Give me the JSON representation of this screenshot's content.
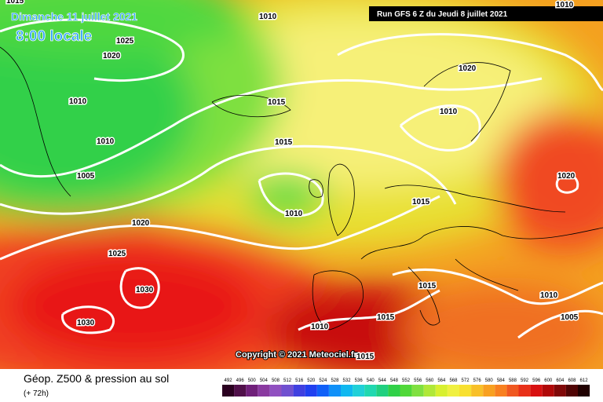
{
  "header": {
    "date": "Dimanche 11 juillet 2021",
    "time": "8:00 locale",
    "run": "Run GFS 6 Z du Jeudi 8 juillet 2021"
  },
  "isobar_labels": [
    "1010",
    "1025",
    "1020",
    "1010",
    "1010",
    "1005",
    "1015",
    "1015",
    "1010",
    "1020",
    "1025",
    "1030",
    "1030",
    "1020",
    "1010",
    "1015",
    "1020",
    "1015",
    "1010",
    "1005",
    "1015",
    "1010",
    "1015",
    "1015",
    "1010"
  ],
  "copyright": "Copyright © 2021 Meteociel.fr",
  "footer": {
    "title": "Géop. Z500 & pression au sol",
    "lead": "(+ 72h)"
  },
  "legend": {
    "labels": [
      "492",
      "496",
      "500",
      "504",
      "508",
      "512",
      "516",
      "520",
      "524",
      "528",
      "532",
      "536",
      "540",
      "544",
      "548",
      "552",
      "556",
      "560",
      "564",
      "568",
      "572",
      "576",
      "580",
      "584",
      "588",
      "592",
      "596",
      "600",
      "604",
      "608",
      "612"
    ]
  }
}
